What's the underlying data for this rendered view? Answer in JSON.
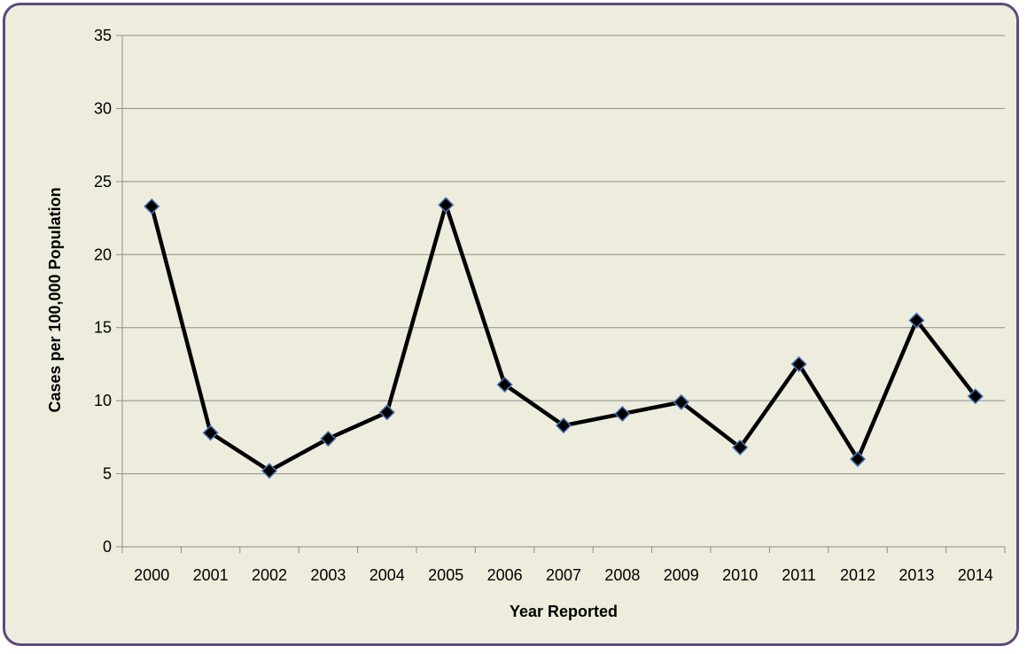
{
  "chart_data": {
    "type": "line",
    "x": [
      "2000",
      "2001",
      "2002",
      "2003",
      "2004",
      "2005",
      "2006",
      "2007",
      "2008",
      "2009",
      "2010",
      "2011",
      "2012",
      "2013",
      "2014"
    ],
    "series": [
      {
        "values": [
          23.3,
          7.8,
          5.2,
          7.4,
          9.2,
          23.4,
          11.1,
          8.3,
          9.1,
          9.9,
          6.8,
          12.5,
          6.0,
          15.5,
          10.3
        ]
      }
    ],
    "xlabel": "Year Reported",
    "ylabel": "Cases per 100,000 Population",
    "ylim": [
      0,
      35
    ],
    "yticks": [
      "0",
      "5",
      "10",
      "15",
      "20",
      "25",
      "30",
      "35"
    ],
    "grid": true,
    "legend": "none"
  },
  "colors": {
    "background": "#eeeddd",
    "frame_border": "#5d4b7c",
    "line": "#000000",
    "marker_fill": "#000000",
    "marker_edge": "#4a74b4",
    "gridline": "#8c8c8c"
  }
}
